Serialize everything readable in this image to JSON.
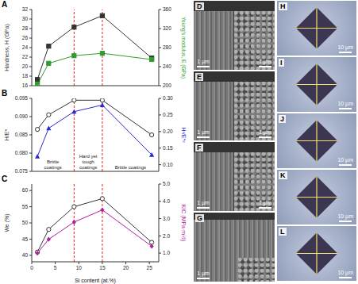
{
  "chart_data": [
    {
      "label": "A",
      "type": "line",
      "x": [
        1.2,
        3.6,
        9,
        15,
        25.5
      ],
      "xlim": [
        0,
        27
      ],
      "xticks": [
        0,
        5,
        10,
        15,
        20,
        25
      ],
      "ylim": [
        16,
        32
      ],
      "yticks": [
        16,
        18,
        20,
        22,
        24,
        26,
        28,
        30,
        32
      ],
      "y2lim": [
        200,
        360
      ],
      "y2ticks": [
        200,
        240,
        280,
        320,
        360
      ],
      "tick_labels": "y",
      "vlines": [
        9,
        15
      ],
      "series": [
        {
          "name": "Hardness, H (GPa)",
          "color": "#333333",
          "marker": "square",
          "values": [
            17.3,
            24.3,
            28.3,
            30.7,
            21.8
          ]
        },
        {
          "name": "Young's modulus, E (GPa)",
          "color": "#2e9e2e",
          "marker": "square",
          "axis": "y2",
          "values": [
            203,
            247,
            263,
            268,
            255
          ]
        }
      ]
    },
    {
      "label": "B",
      "type": "line",
      "x": [
        1.2,
        3.6,
        9,
        15,
        25.5
      ],
      "xlim": [
        0,
        27
      ],
      "xticks": [
        0,
        5,
        10,
        15,
        20,
        25
      ],
      "ylim": [
        0.075,
        0.095
      ],
      "yticks": [
        0.075,
        {
          "value": 0.08,
          "label": "0.080"
        },
        0.085,
        {
          "value": 0.09,
          "label": "0.090"
        },
        0.095
      ],
      "y2lim": [
        0.08,
        0.3
      ],
      "y2ticks": [
        {
          "value": 0.1,
          "label": "0.10"
        },
        0.15,
        {
          "value": 0.2,
          "label": "0.20"
        },
        0.25,
        {
          "value": 0.3,
          "label": "0.30"
        }
      ],
      "tick_labels": "y",
      "vlines": [
        9,
        15
      ],
      "annotations": [
        "Brittle coatings",
        "Hard yet tough coatings",
        "Brittle coatings"
      ],
      "series": [
        {
          "name": "H/E*",
          "color": "#333333",
          "marker": "circle-open",
          "values": [
            0.0865,
            0.0905,
            0.0945,
            0.0945,
            0.085
          ]
        },
        {
          "name": "H³/E*²",
          "color": "#2a2ad0",
          "marker": "triangle",
          "axis": "y2",
          "values": [
            0.125,
            0.21,
            0.26,
            0.28,
            0.13
          ]
        }
      ]
    },
    {
      "label": "C",
      "type": "line",
      "x": [
        1.2,
        3.6,
        9,
        15,
        25.5
      ],
      "xlim": [
        0,
        27
      ],
      "xticks": [
        0,
        5,
        10,
        15,
        20,
        25
      ],
      "xlabel": "Si content (at.%)",
      "ylim": [
        38,
        62
      ],
      "yticks": [
        40,
        45,
        50,
        55,
        60
      ],
      "y2lim": [
        0.5,
        5
      ],
      "y2ticks": [
        {
          "value": 1,
          "label": "1.0"
        },
        {
          "value": 2,
          "label": "2.0"
        },
        {
          "value": 3,
          "label": "3.0"
        },
        {
          "value": 4,
          "label": "4.0"
        },
        {
          "value": 5,
          "label": "5.0"
        }
      ],
      "vlines": [
        9,
        15
      ],
      "series": [
        {
          "name": "We (%)",
          "color": "#333333",
          "marker": "circle-open",
          "values": [
            41,
            48,
            55,
            57.5,
            44
          ]
        },
        {
          "name": "KIC (MPa·m½)",
          "color": "#b0209a",
          "marker": "diamond",
          "axis": "y2",
          "values": [
            1.0,
            1.8,
            2.8,
            3.5,
            1.4
          ]
        }
      ]
    }
  ],
  "micrographs": [
    {
      "label": "D",
      "scale_bars": [
        "1 µm",
        "1 µm"
      ]
    },
    {
      "label": "E",
      "scale_bars": [
        "1 µm",
        "1 µm"
      ]
    },
    {
      "label": "F",
      "scale_bars": [
        "1 µm",
        "1 µm"
      ]
    },
    {
      "label": "G",
      "scale_bars": [
        "1 µm"
      ]
    },
    {
      "label": "H",
      "scale_bars": [
        "10 µm"
      ]
    },
    {
      "label": "I",
      "scale_bars": [
        "10 µm"
      ]
    },
    {
      "label": "J",
      "scale_bars": [
        "10 µm"
      ]
    },
    {
      "label": "K",
      "scale_bars": [
        "10 µm"
      ]
    },
    {
      "label": "L",
      "scale_bars": [
        "10 µm"
      ]
    }
  ]
}
